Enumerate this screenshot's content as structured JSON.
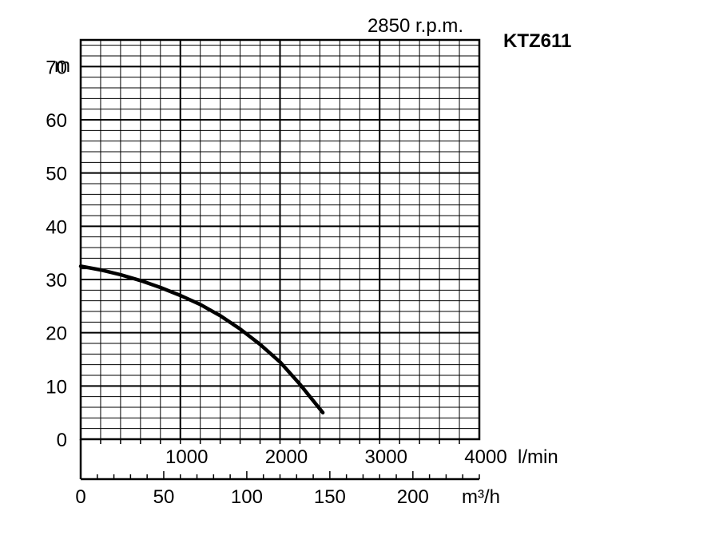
{
  "chart_data": {
    "type": "line",
    "title": "KTZ611",
    "subtitle": "2850 r.p.m.",
    "ylabel": "m",
    "ylim": [
      0,
      75
    ],
    "yticks": [
      0,
      10,
      20,
      30,
      40,
      50,
      60,
      70
    ],
    "xlim": [
      0,
      4000
    ],
    "xticks_lmin": [
      1000,
      2000,
      3000,
      4000
    ],
    "xunit_lmin": "l/min",
    "xticks_m3h": [
      0,
      50,
      100,
      150,
      200
    ],
    "xunit_m3h": "m³/h",
    "grid": true,
    "series": [
      {
        "x": [
          0,
          200,
          400,
          600,
          800,
          1000,
          1200,
          1400,
          1600,
          1800,
          2000,
          2200,
          2430
        ],
        "y": [
          32.5,
          31.8,
          30.9,
          29.8,
          28.5,
          27.0,
          25.3,
          23.2,
          20.7,
          17.8,
          14.5,
          10.3,
          5.0
        ]
      }
    ],
    "colors": {
      "curve": "#000000",
      "grid": "#000000"
    }
  }
}
